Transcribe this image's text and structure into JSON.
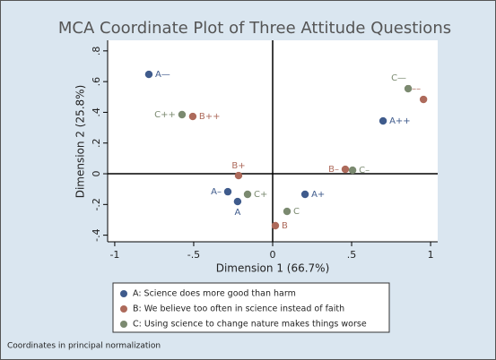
{
  "chart_data": {
    "type": "scatter",
    "title": "MCA Coordinate Plot of Three Attitude Questions",
    "x_label": "Dimension 1 (66.7%)",
    "y_label": "Dimension 2 (25.8%)",
    "note": "Coordinates in principal normalization",
    "xlim": [
      -1.045,
      1.045
    ],
    "ylim": [
      -0.443,
      0.869
    ],
    "xticks": [
      -1,
      {
        "value": -0.5,
        "label": "-.5"
      },
      0,
      {
        "value": 0.5,
        "label": ".5"
      },
      1
    ],
    "yticks": [
      {
        "value": -0.4,
        "label": "-.4"
      },
      {
        "value": -0.2,
        "label": "-.2"
      },
      0,
      {
        "value": 0.2,
        "label": ".2"
      },
      {
        "value": 0.4,
        "label": ".4"
      },
      {
        "value": 0.6,
        "label": ".6"
      },
      {
        "value": 0.8,
        "label": ".8"
      }
    ],
    "reference_lines": true,
    "series": [
      {
        "name": "A:  Science does more good than harm",
        "color": "#3f5b8c",
        "labels": [
          "A—",
          "A–",
          "A",
          "A+",
          "A++"
        ],
        "x": [
          -0.784,
          -0.284,
          -0.222,
          0.205,
          0.699
        ],
        "values": [
          0.647,
          -0.117,
          -0.181,
          -0.134,
          0.344
        ]
      },
      {
        "name": "B:  We believe too often in science instead of faith",
        "color": "#ad6a5b",
        "labels": [
          "B++",
          "B+",
          "B",
          "B–",
          "B––"
        ],
        "x": [
          -0.506,
          -0.216,
          0.017,
          0.46,
          0.955
        ],
        "values": [
          0.373,
          -0.012,
          -0.338,
          0.029,
          0.484
        ]
      },
      {
        "name": "C:  Using science to change nature makes things worse",
        "color": "#7b8a70",
        "labels": [
          "C++",
          "C+",
          "C",
          "C–",
          "C—"
        ],
        "x": [
          -0.574,
          -0.159,
          0.091,
          0.506,
          0.858
        ],
        "values": [
          0.385,
          -0.134,
          -0.245,
          0.023,
          0.554
        ]
      }
    ]
  }
}
